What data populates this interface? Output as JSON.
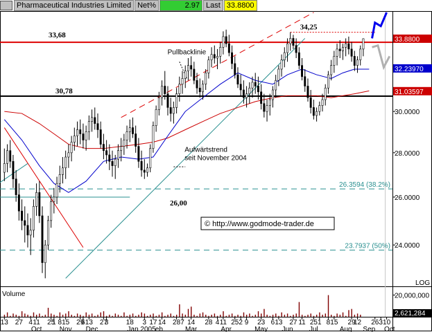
{
  "header": {
    "name": "Pharmaceutical Industries Limited",
    "net_label": "Net%",
    "net_value": "2.97",
    "last_label": "Last",
    "last_value": "33.8800",
    "net_color": "#33cc33",
    "last_color": "#ffff00"
  },
  "chart_data": {
    "type": "line",
    "price_axis": {
      "ylim": [
        22.5,
        35.4
      ],
      "ticks": [
        {
          "value": 24,
          "label": "24.0000"
        },
        {
          "value": 26,
          "label": "26.0000"
        },
        {
          "value": 28,
          "label": "28.0000"
        },
        {
          "value": 30,
          "label": "30.0000"
        }
      ]
    },
    "price_tags": [
      {
        "value": 33.88,
        "label": "33.8800",
        "bg": "#cc0000",
        "fg": "#ffffff"
      },
      {
        "value": 32.2397,
        "label": "32.23970",
        "bg": "#0000cc",
        "fg": "#ffffff"
      },
      {
        "value": 31.03597,
        "label": "31.03597",
        "bg": "#cc0000",
        "fg": "#ffffff"
      }
    ],
    "scale_label": "LOG",
    "x_ticks": [
      {
        "t": 0,
        "day": "13"
      },
      {
        "t": 5,
        "day": "27"
      },
      {
        "t": 9,
        "day": "4"
      },
      {
        "t": 11,
        "day": "11"
      },
      {
        "t": 16,
        "day": "25"
      },
      {
        "t": 17,
        "day": "1"
      },
      {
        "t": 19,
        "day": "8"
      },
      {
        "t": 21,
        "day": "15"
      },
      {
        "t": 26,
        "day": "29"
      },
      {
        "t": 27,
        "day": "6"
      },
      {
        "t": 29,
        "day": "13"
      },
      {
        "t": 34,
        "day": "27"
      },
      {
        "t": 35,
        "day": "3"
      },
      {
        "t": 43,
        "day": "18"
      },
      {
        "t": 48,
        "day": "3"
      },
      {
        "t": 51,
        "day": "17"
      },
      {
        "t": 54,
        "day": "14"
      },
      {
        "t": 59,
        "day": "28"
      },
      {
        "t": 61,
        "day": "7"
      },
      {
        "t": 64,
        "day": "14"
      },
      {
        "t": 70,
        "day": "28"
      },
      {
        "t": 73,
        "day": "4"
      },
      {
        "t": 75,
        "day": "11"
      },
      {
        "t": 79,
        "day": "25"
      },
      {
        "t": 81,
        "day": "2"
      },
      {
        "t": 83,
        "day": "9"
      },
      {
        "t": 88,
        "day": "23"
      },
      {
        "t": 92,
        "day": "6"
      },
      {
        "t": 94,
        "day": "13"
      },
      {
        "t": 99,
        "day": "27"
      },
      {
        "t": 102,
        "day": "11"
      },
      {
        "t": 106,
        "day": "25"
      },
      {
        "t": 108,
        "day": "1"
      },
      {
        "t": 111,
        "day": "8"
      },
      {
        "t": 113,
        "day": "15"
      },
      {
        "t": 119,
        "day": "29"
      },
      {
        "t": 121,
        "day": "12"
      },
      {
        "t": 127,
        "day": "26"
      },
      {
        "t": 129,
        "day": "3"
      },
      {
        "t": 131,
        "day": "10"
      }
    ],
    "x_months": [
      {
        "t": 11,
        "label": "Oct"
      },
      {
        "t": 21,
        "label": "Nov"
      },
      {
        "t": 30,
        "label": "Dec"
      },
      {
        "t": 47,
        "label": "Jan 2005"
      },
      {
        "t": 53,
        "label": "eb"
      },
      {
        "t": 64,
        "label": "Mar"
      },
      {
        "t": 76,
        "label": "Apr"
      },
      {
        "t": 88,
        "label": "May"
      },
      {
        "t": 97,
        "label": "Jun"
      },
      {
        "t": 106,
        "label": "Jul"
      },
      {
        "t": 117,
        "label": "Aug"
      },
      {
        "t": 125,
        "label": "Sep"
      },
      {
        "t": 132,
        "label": "Oct"
      }
    ],
    "candles": [
      [
        27.1,
        28.2,
        26.7,
        27.5
      ],
      [
        27.5,
        28.4,
        27.1,
        28.1
      ],
      [
        28.1,
        28.6,
        27.3,
        27.6
      ],
      [
        27.6,
        27.9,
        26.4,
        26.8
      ],
      [
        26.8,
        27.2,
        25.8,
        26.1
      ],
      [
        26.1,
        26.6,
        25.0,
        25.4
      ],
      [
        25.4,
        25.9,
        24.6,
        25.0
      ],
      [
        25.0,
        25.6,
        24.1,
        24.8
      ],
      [
        24.8,
        25.3,
        23.9,
        24.4
      ],
      [
        24.4,
        25.1,
        23.6,
        24.6
      ],
      [
        24.6,
        25.9,
        24.3,
        25.6
      ],
      [
        25.6,
        26.6,
        25.2,
        26.2
      ],
      [
        26.2,
        26.7,
        24.9,
        25.2
      ],
      [
        25.2,
        25.6,
        22.9,
        23.3
      ],
      [
        23.3,
        24.2,
        22.7,
        24.0
      ],
      [
        24.0,
        25.2,
        23.8,
        25.0
      ],
      [
        25.0,
        26.1,
        24.7,
        25.8
      ],
      [
        25.8,
        26.4,
        25.3,
        26.0
      ],
      [
        26.0,
        26.9,
        25.7,
        26.6
      ],
      [
        26.6,
        27.4,
        26.2,
        27.0
      ],
      [
        27.0,
        27.8,
        26.6,
        27.3
      ],
      [
        27.3,
        28.1,
        26.8,
        27.8
      ],
      [
        27.8,
        28.4,
        27.3,
        28.0
      ],
      [
        28.0,
        28.8,
        27.6,
        28.5
      ],
      [
        28.5,
        29.2,
        28.1,
        28.8
      ],
      [
        28.8,
        29.5,
        28.3,
        29.1
      ],
      [
        29.1,
        29.6,
        28.4,
        28.9
      ],
      [
        28.9,
        29.4,
        28.2,
        28.6
      ],
      [
        28.6,
        29.3,
        28.1,
        29.0
      ],
      [
        29.0,
        29.8,
        28.6,
        29.5
      ],
      [
        29.5,
        30.1,
        29.0,
        29.7
      ],
      [
        29.7,
        30.2,
        29.1,
        29.4
      ],
      [
        29.4,
        29.9,
        28.7,
        29.1
      ],
      [
        29.1,
        29.5,
        28.2,
        28.4
      ],
      [
        28.4,
        28.9,
        27.7,
        28.1
      ],
      [
        28.1,
        28.6,
        27.5,
        27.9
      ],
      [
        27.9,
        28.4,
        27.2,
        27.6
      ],
      [
        27.6,
        28.1,
        26.9,
        27.4
      ],
      [
        27.4,
        27.9,
        26.8,
        27.7
      ],
      [
        27.7,
        28.4,
        27.3,
        28.1
      ],
      [
        28.1,
        28.7,
        27.6,
        28.3
      ],
      [
        28.3,
        28.9,
        27.9,
        28.6
      ],
      [
        28.6,
        29.3,
        28.2,
        29.0
      ],
      [
        29.0,
        29.6,
        28.5,
        29.2
      ],
      [
        29.2,
        29.7,
        28.7,
        28.9
      ],
      [
        28.9,
        29.3,
        28.0,
        28.3
      ],
      [
        28.3,
        28.7,
        27.3,
        27.6
      ],
      [
        27.6,
        28.1,
        26.9,
        27.2
      ],
      [
        27.2,
        27.7,
        26.8,
        27.1
      ],
      [
        27.1,
        27.5,
        26.9,
        27.3
      ],
      [
        27.3,
        28.4,
        27.1,
        28.2
      ],
      [
        28.2,
        29.5,
        28.0,
        29.3
      ],
      [
        29.3,
        30.3,
        29.0,
        30.1
      ],
      [
        30.1,
        31.0,
        29.8,
        30.7
      ],
      [
        30.7,
        31.6,
        30.3,
        31.3
      ],
      [
        31.3,
        32.1,
        30.6,
        30.9
      ],
      [
        30.9,
        31.3,
        29.8,
        30.2
      ],
      [
        30.2,
        30.7,
        29.5,
        29.9
      ],
      [
        29.9,
        30.5,
        29.4,
        30.2
      ],
      [
        30.2,
        31.2,
        29.9,
        30.9
      ],
      [
        30.9,
        31.8,
        30.5,
        31.4
      ],
      [
        31.4,
        32.1,
        30.9,
        31.7
      ],
      [
        31.7,
        32.4,
        31.2,
        32.1
      ],
      [
        32.1,
        32.8,
        31.6,
        32.4
      ],
      [
        32.4,
        32.9,
        31.8,
        32.2
      ],
      [
        32.2,
        32.6,
        31.4,
        31.6
      ],
      [
        31.6,
        32.0,
        30.9,
        31.2
      ],
      [
        31.2,
        31.7,
        30.7,
        31.0
      ],
      [
        31.0,
        31.6,
        30.6,
        31.4
      ],
      [
        31.4,
        32.2,
        31.1,
        32.0
      ],
      [
        32.0,
        32.9,
        31.7,
        32.7
      ],
      [
        32.7,
        33.4,
        32.3,
        33.0
      ],
      [
        33.0,
        33.5,
        32.5,
        32.8
      ],
      [
        32.8,
        33.3,
        32.2,
        32.9
      ],
      [
        32.9,
        33.7,
        32.5,
        33.4
      ],
      [
        33.4,
        34.3,
        33.0,
        34.0
      ],
      [
        34.0,
        34.4,
        33.4,
        33.6
      ],
      [
        33.6,
        34.1,
        32.9,
        33.1
      ],
      [
        33.1,
        33.5,
        32.2,
        32.5
      ],
      [
        32.5,
        32.9,
        31.7,
        31.9
      ],
      [
        31.9,
        32.3,
        31.2,
        31.4
      ],
      [
        31.4,
        31.9,
        30.8,
        31.1
      ],
      [
        31.1,
        31.6,
        30.4,
        30.7
      ],
      [
        30.7,
        31.3,
        30.2,
        30.9
      ],
      [
        30.9,
        31.5,
        30.4,
        31.2
      ],
      [
        31.2,
        31.8,
        30.7,
        31.5
      ],
      [
        31.5,
        32.0,
        30.9,
        31.3
      ],
      [
        31.3,
        31.8,
        30.6,
        31.0
      ],
      [
        31.0,
        31.4,
        30.1,
        30.4
      ],
      [
        30.4,
        30.9,
        29.7,
        30.0
      ],
      [
        30.0,
        30.6,
        29.5,
        30.3
      ],
      [
        30.3,
        30.9,
        29.8,
        30.6
      ],
      [
        30.6,
        31.3,
        30.2,
        31.1
      ],
      [
        31.1,
        31.9,
        30.7,
        31.6
      ],
      [
        31.6,
        32.4,
        31.3,
        32.2
      ],
      [
        32.2,
        33.0,
        31.8,
        32.7
      ],
      [
        32.7,
        33.4,
        32.3,
        33.1
      ],
      [
        33.1,
        33.9,
        32.6,
        33.6
      ],
      [
        33.6,
        34.25,
        33.2,
        33.9
      ],
      [
        33.9,
        34.1,
        33.3,
        33.5
      ],
      [
        33.5,
        33.9,
        32.8,
        33.1
      ],
      [
        33.1,
        33.4,
        32.2,
        32.4
      ],
      [
        32.4,
        32.8,
        31.6,
        31.8
      ],
      [
        31.8,
        32.2,
        31.0,
        31.3
      ],
      [
        31.3,
        31.7,
        30.5,
        30.7
      ],
      [
        30.7,
        31.1,
        29.9,
        30.2
      ],
      [
        30.2,
        30.6,
        29.6,
        29.8
      ],
      [
        29.8,
        30.2,
        29.5,
        30.0
      ],
      [
        30.0,
        30.5,
        29.8,
        30.3
      ],
      [
        30.3,
        30.9,
        30.0,
        30.6
      ],
      [
        30.6,
        31.4,
        30.3,
        31.2
      ],
      [
        31.2,
        32.1,
        30.9,
        31.9
      ],
      [
        31.9,
        32.7,
        31.6,
        32.4
      ],
      [
        32.4,
        33.2,
        32.0,
        32.9
      ],
      [
        32.9,
        33.6,
        32.4,
        33.3
      ],
      [
        33.3,
        33.8,
        32.8,
        33.2
      ],
      [
        33.2,
        33.6,
        32.7,
        33.4
      ],
      [
        33.4,
        33.9,
        32.9,
        33.6
      ],
      [
        33.6,
        34.0,
        33.0,
        33.3
      ],
      [
        33.3,
        33.7,
        32.6,
        32.9
      ],
      [
        32.9,
        33.2,
        32.1,
        32.4
      ],
      [
        32.4,
        32.9,
        32.0,
        32.7
      ],
      [
        32.7,
        33.5,
        32.4,
        33.3
      ],
      [
        33.3,
        33.9,
        32.9,
        33.88
      ]
    ],
    "ma_blue": [
      [
        0,
        29.6
      ],
      [
        6,
        28.6
      ],
      [
        12,
        27.4
      ],
      [
        17,
        26.6
      ],
      [
        22,
        26.2
      ],
      [
        28,
        26.7
      ],
      [
        34,
        27.6
      ],
      [
        40,
        27.8
      ],
      [
        46,
        27.7
      ],
      [
        51,
        27.8
      ],
      [
        56,
        28.8
      ],
      [
        62,
        30.0
      ],
      [
        68,
        30.7
      ],
      [
        74,
        31.4
      ],
      [
        80,
        32.0
      ],
      [
        86,
        31.6
      ],
      [
        92,
        31.4
      ],
      [
        97,
        31.9
      ],
      [
        102,
        32.2
      ],
      [
        107,
        31.9
      ],
      [
        112,
        31.7
      ],
      [
        116,
        32.0
      ],
      [
        120,
        32.2
      ],
      [
        125,
        32.2
      ]
    ],
    "ma_red": [
      [
        0,
        30.0
      ],
      [
        6,
        29.9
      ],
      [
        12,
        29.4
      ],
      [
        17,
        28.9
      ],
      [
        22,
        28.4
      ],
      [
        28,
        28.2
      ],
      [
        34,
        28.2
      ],
      [
        40,
        28.3
      ],
      [
        46,
        28.4
      ],
      [
        51,
        28.5
      ],
      [
        56,
        28.7
      ],
      [
        62,
        29.1
      ],
      [
        68,
        29.5
      ],
      [
        74,
        29.9
      ],
      [
        80,
        30.2
      ],
      [
        86,
        30.5
      ],
      [
        92,
        30.7
      ],
      [
        97,
        30.8
      ],
      [
        102,
        30.8
      ],
      [
        107,
        30.8
      ],
      [
        112,
        30.7
      ],
      [
        116,
        30.8
      ],
      [
        120,
        30.9
      ],
      [
        125,
        31.05
      ]
    ],
    "horizontal_levels": [
      {
        "value": 33.68,
        "label": "33,68",
        "color": "#dd0000",
        "style": "solid"
      },
      {
        "value": 30.78,
        "label": "30,78",
        "color": "#000000",
        "style": "solid"
      },
      {
        "value": 26.3594,
        "label": "26.3594 (38.2%)",
        "color": "#2a9090",
        "style": "dashed"
      },
      {
        "value": 26.0,
        "label": "26,00",
        "color": "#2a9090",
        "style": "solid"
      },
      {
        "value": 23.7937,
        "label": "23.7937 (50%)",
        "color": "#2a9090",
        "style": "dashed"
      }
    ],
    "peak_level": {
      "value": 34.25,
      "label": "34,25",
      "t_from": 98,
      "t_to": 127,
      "color": "#dd0000"
    },
    "trendlines": [
      {
        "name": "pullback",
        "label": "Pullbacklinie",
        "from": [
          40,
          29.7
        ],
        "to": [
          106,
          35.4
        ],
        "color": "#dd0000",
        "style": "dashed"
      },
      {
        "name": "uptrend",
        "label_lines": [
          "Aufwärtstrend",
          "seit November 2004"
        ],
        "from": [
          21,
          22.7
        ],
        "to": [
          103,
          33.9
        ],
        "color": "#2a9090",
        "style": "solid"
      },
      {
        "name": "down",
        "from": [
          0,
          29.2
        ],
        "to": [
          27,
          23.9
        ],
        "color": "#dd0000",
        "style": "solid"
      },
      {
        "name": "old",
        "from": [
          -2,
          26.6
        ],
        "to": [
          8,
          27.5
        ],
        "color": "#2a9090",
        "style": "solid"
      }
    ],
    "projections": [
      {
        "color": "#0000ee",
        "points": [
          [
            126,
            33.9
          ],
          [
            127,
            34.8
          ],
          [
            129,
            34.6
          ],
          [
            131,
            35.4
          ]
        ]
      },
      {
        "color": "#b0b0b0",
        "points": [
          [
            126,
            33.4
          ],
          [
            128,
            33.5
          ],
          [
            130,
            32.3
          ],
          [
            132,
            32.9
          ]
        ]
      }
    ],
    "watermark": "© http://www.godmode-trader.de",
    "volume": {
      "label": "Volume",
      "ticks": [
        {
          "value": 20000000,
          "label": "20,000,000"
        }
      ],
      "last": {
        "value": 2621284,
        "label": "2,621,284"
      },
      "max": 24000000,
      "bars": [
        3,
        5,
        2,
        4,
        3,
        2,
        6,
        4,
        3,
        2,
        5,
        3,
        4,
        2,
        3,
        9,
        4,
        3,
        2,
        5,
        3,
        4,
        6,
        3,
        2,
        4,
        3,
        2,
        5,
        3,
        4,
        2,
        3,
        5,
        6,
        2,
        3,
        2,
        4,
        3,
        2,
        5,
        2,
        3,
        4,
        2,
        3,
        5,
        4,
        2,
        3,
        4,
        2,
        3,
        5,
        2,
        3,
        4,
        2,
        3,
        12,
        4,
        3,
        8,
        10,
        3,
        2,
        4,
        5,
        3,
        2,
        3,
        4,
        2,
        3,
        6,
        2,
        3,
        4,
        2,
        3,
        2,
        5,
        3,
        4,
        2,
        3,
        6,
        4,
        8,
        3,
        2,
        3,
        4,
        2,
        5,
        3,
        4,
        2,
        3,
        4,
        14,
        3,
        2,
        3,
        4,
        2,
        3,
        5,
        3,
        4,
        20,
        3,
        2,
        4,
        3,
        5,
        2,
        7,
        8,
        3,
        4,
        3
      ]
    }
  }
}
